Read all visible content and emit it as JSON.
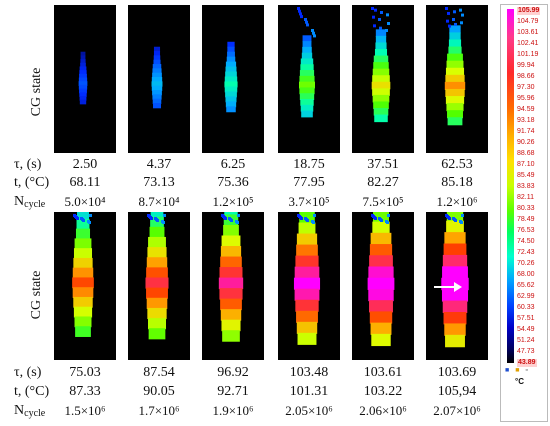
{
  "row_label": "CG state",
  "rows": [
    {
      "tau_label": "τ, (s)",
      "temp_label": "t, (°C)",
      "ncycle_label": "N",
      "ncycle_sub": "cycle",
      "tau": [
        "2.50",
        "4.37",
        "6.25",
        "18.75",
        "37.51",
        "62.53"
      ],
      "temp": [
        "68.11",
        "73.13",
        "75.36",
        "77.95",
        "82.27",
        "85.18"
      ],
      "ncycle": [
        "5.0×10⁴",
        "8.7×10⁴",
        "1.2×10⁵",
        "3.7×10⁵",
        "7.5×10⁵",
        "1.2×10⁶"
      ]
    },
    {
      "tau_label": "τ, (s)",
      "temp_label": "t, (°C)",
      "ncycle_label": "N",
      "ncycle_sub": "cycle",
      "tau": [
        "75.03",
        "87.54",
        "96.92",
        "103.48",
        "103.61",
        "103.69"
      ],
      "temp": [
        "87.33",
        "90.05",
        "92.71",
        "101.31",
        "103.22",
        "105,94"
      ],
      "ncycle": [
        "1.5×10⁶",
        "1.7×10⁶",
        "1.9×10⁶",
        "2.05×10⁶",
        "2.06×10⁶",
        "2.07×10⁶"
      ]
    }
  ],
  "thermal_levels": [
    [
      0.15,
      0.25,
      0.35,
      0.48,
      0.6,
      0.68
    ],
    [
      0.74,
      0.8,
      0.86,
      0.94,
      0.97,
      1.0
    ]
  ],
  "scale": {
    "unit": "°C",
    "icons": [
      "dot-icon",
      "dot-icon",
      "dot-icon"
    ],
    "ticks": [
      "105.99",
      "104.79",
      "103.61",
      "102.41",
      "101.19",
      "99.94",
      "98.66",
      "97.30",
      "95.96",
      "94.59",
      "93.18",
      "91.74",
      "90.26",
      "88.68",
      "87.10",
      "85.49",
      "83.83",
      "82.11",
      "80.33",
      "78.49",
      "76.53",
      "74.50",
      "72.43",
      "70.26",
      "68.00",
      "65.62",
      "62.99",
      "60.33",
      "57.51",
      "54.49",
      "51.24",
      "47.73",
      "43.89"
    ]
  }
}
